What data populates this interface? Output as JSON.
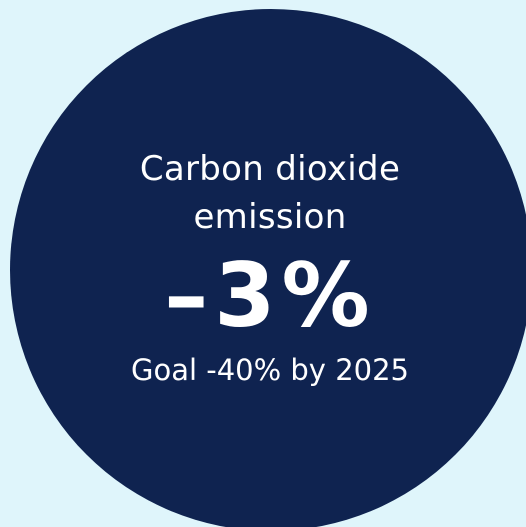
{
  "card": {
    "title_line1": "Carbon dioxide",
    "title_line2": "emission",
    "value": "–3%",
    "goal": "Goal -40% by 2025"
  },
  "colors": {
    "background": "#dff5fb",
    "circle": "#0f2350",
    "text": "#ffffff"
  }
}
